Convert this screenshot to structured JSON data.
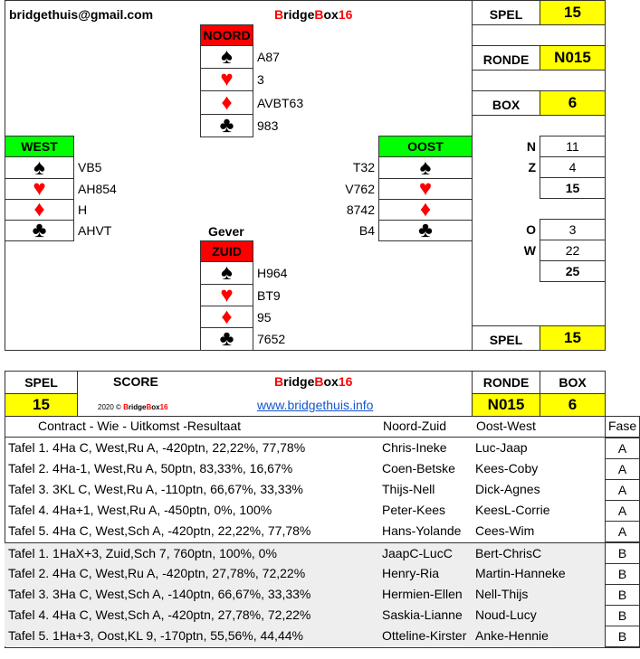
{
  "email": "bridgethuis@gmail.com",
  "logo": {
    "b1": "B",
    "t1": "ridge",
    "b2": "B",
    "t2": "ox",
    "n": "16"
  },
  "north": {
    "label": "NOORD",
    "spades": "A87",
    "hearts": "3",
    "diamonds": "AVBT63",
    "clubs": "983"
  },
  "west": {
    "label": "WEST",
    "spades": "VB5",
    "hearts": "AH854",
    "diamonds": "H",
    "clubs": "AHVT"
  },
  "east": {
    "label": "OOST",
    "spades": "T32",
    "hearts": "V762",
    "diamonds": "8742",
    "clubs": "B4"
  },
  "south": {
    "label": "ZUID",
    "spades": "H964",
    "hearts": "BT9",
    "diamonds": "95",
    "clubs": "7652"
  },
  "dealer_label": "Gever",
  "suits": {
    "spade": "♠",
    "heart": "♥",
    "diamond": "♦",
    "club": "♣"
  },
  "side": {
    "spel_label": "SPEL",
    "spel": "15",
    "ronde_label": "RONDE",
    "ronde": "N015",
    "box_label": "BOX",
    "box": "6"
  },
  "hcp": {
    "N": "11",
    "Z": "4",
    "NZ": "15",
    "O": "3",
    "W": "22",
    "OW": "25",
    "n_label": "N",
    "z_label": "Z",
    "o_label": "O",
    "w_label": "W"
  },
  "score": {
    "spel_label": "SPEL",
    "score_label": "SCORE",
    "ronde_label": "RONDE",
    "box_label": "BOX",
    "spel": "15",
    "ronde": "N015",
    "box": "6",
    "copyright": "2020 © ",
    "link": "www.bridgethuis.info"
  },
  "columns": {
    "contract": "Contract - Wie - Uitkomst -Resultaat",
    "nz": "Noord-Zuid",
    "ow": "Oost-West",
    "fase": "Fase"
  },
  "rows": [
    {
      "c": "Tafel 1. 4Ha C, West,Ru A, -420ptn, 22,22%, 77,78%",
      "nz": "Chris-Ineke",
      "ow": "Luc-Jaap",
      "f": "A"
    },
    {
      "c": "Tafel 2. 4Ha-1, West,Ru A, 50ptn, 83,33%, 16,67%",
      "nz": "Coen-Betske",
      "ow": "Kees-Coby",
      "f": "A"
    },
    {
      "c": "Tafel 3. 3KL C, West,Ru A, -110ptn, 66,67%, 33,33%",
      "nz": "Thijs-Nell",
      "ow": "Dick-Agnes",
      "f": "A"
    },
    {
      "c": "Tafel 4. 4Ha+1, West,Ru A, -450ptn, 0%, 100%",
      "nz": "Peter-Kees",
      "ow": "KeesL-Corrie",
      "f": "A"
    },
    {
      "c": "Tafel 5. 4Ha C, West,Sch A, -420ptn, 22,22%, 77,78%",
      "nz": "Hans-Yolande",
      "ow": "Cees-Wim",
      "f": "A"
    },
    {
      "c": "Tafel 1. 1HaX+3, Zuid,Sch 7, 760ptn, 100%, 0%",
      "nz": "JaapC-LucC",
      "ow": "Bert-ChrisC",
      "f": "B"
    },
    {
      "c": "Tafel 2. 4Ha C, West,Ru A, -420ptn, 27,78%, 72,22%",
      "nz": "Henry-Ria",
      "ow": "Martin-Hanneke",
      "f": "B"
    },
    {
      "c": "Tafel 3. 3Ha C, West,Sch A, -140ptn, 66,67%, 33,33%",
      "nz": "Hermien-Ellen",
      "ow": "Nell-Thijs",
      "f": "B"
    },
    {
      "c": "Tafel 4. 4Ha C, West,Sch A, -420ptn, 27,78%, 72,22%",
      "nz": "Saskia-Lianne",
      "ow": "Noud-Lucy",
      "f": "B"
    },
    {
      "c": "Tafel 5. 1Ha+3, Oost,KL 9, -170ptn, 55,56%, 44,44%",
      "nz": "Otteline-Kirster",
      "ow": "Anke-Hennie",
      "f": "B"
    }
  ]
}
